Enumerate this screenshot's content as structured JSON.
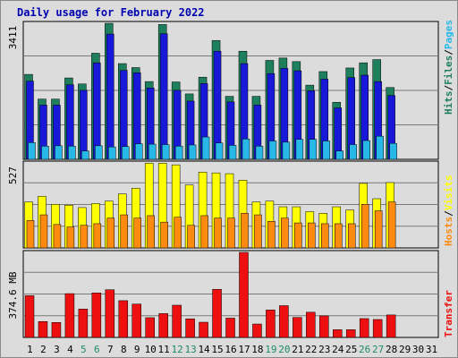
{
  "title": "Daily usage for February 2022",
  "colors": {
    "hits": "#1e7f5c",
    "files": "#1818d8",
    "pages": "#28b8e8",
    "visits": "#ffff00",
    "hosts": "#ff8a10",
    "transfer": "#ee1010",
    "weekend_label": "#1e8a6a",
    "weekday_label": "#000000"
  },
  "chart_data": [
    {
      "type": "bar",
      "name": "hits-files-pages",
      "ylim": [
        0,
        3411
      ],
      "y_max_label": "3411",
      "series_labels": [
        "Hits",
        "Files",
        "Pages"
      ],
      "x": [
        1,
        2,
        3,
        4,
        5,
        6,
        7,
        8,
        9,
        10,
        11,
        12,
        13,
        14,
        15,
        16,
        17,
        18,
        19,
        20,
        21,
        22,
        23,
        24,
        25,
        26,
        27,
        28
      ],
      "series": [
        {
          "name": "Hits",
          "values": [
            2130,
            1510,
            1510,
            2040,
            1890,
            2660,
            3410,
            2400,
            2300,
            1950,
            3380,
            1940,
            1640,
            2060,
            2980,
            1580,
            2710,
            1580,
            2480,
            2540,
            2450,
            1860,
            2200,
            1430,
            2290,
            2420,
            2500,
            1800
          ]
        },
        {
          "name": "Files",
          "values": [
            1960,
            1360,
            1360,
            1870,
            1730,
            2420,
            3140,
            2230,
            2170,
            1790,
            3150,
            1730,
            1460,
            1900,
            2710,
            1440,
            2400,
            1360,
            2150,
            2280,
            2220,
            1720,
            2010,
            1290,
            2050,
            2110,
            1950,
            1600
          ]
        },
        {
          "name": "Pages",
          "values": [
            420,
            330,
            340,
            330,
            210,
            340,
            310,
            320,
            390,
            380,
            370,
            330,
            360,
            560,
            410,
            350,
            510,
            330,
            460,
            430,
            500,
            500,
            460,
            210,
            370,
            470,
            580,
            400
          ]
        }
      ],
      "xlim": [
        1,
        31
      ]
    },
    {
      "type": "bar",
      "name": "visits-hosts",
      "ylim": [
        0,
        527
      ],
      "y_max_label": "527",
      "series_labels": [
        "Hosts",
        "Visits"
      ],
      "x": [
        1,
        2,
        3,
        4,
        5,
        6,
        7,
        8,
        9,
        10,
        11,
        12,
        13,
        14,
        15,
        16,
        17,
        18,
        19,
        20,
        21,
        22,
        23,
        24,
        25,
        26,
        27,
        28
      ],
      "series": [
        {
          "name": "Visits",
          "values": [
            285,
            320,
            270,
            265,
            250,
            275,
            290,
            335,
            370,
            525,
            525,
            515,
            390,
            470,
            465,
            460,
            420,
            285,
            290,
            255,
            255,
            225,
            215,
            255,
            235,
            400,
            305,
            405
          ]
        },
        {
          "name": "Hosts",
          "values": [
            170,
            205,
            145,
            130,
            140,
            150,
            185,
            205,
            185,
            200,
            160,
            190,
            140,
            200,
            185,
            185,
            215,
            205,
            165,
            185,
            155,
            155,
            150,
            150,
            150,
            270,
            230,
            285
          ]
        }
      ],
      "xlim": [
        1,
        31
      ]
    },
    {
      "type": "bar",
      "name": "transfer",
      "ylim": [
        0,
        374.6
      ],
      "y_max_label": "374.6 MB",
      "series_labels": [
        "Transfer"
      ],
      "x": [
        1,
        2,
        3,
        4,
        5,
        6,
        7,
        8,
        9,
        10,
        11,
        12,
        13,
        14,
        15,
        16,
        17,
        18,
        19,
        20,
        21,
        22,
        23,
        24,
        25,
        26,
        27,
        28
      ],
      "series": [
        {
          "name": "Transfer",
          "values": [
            184,
            70,
            66,
            193,
            125,
            196,
            210,
            162,
            147,
            87,
            105,
            142,
            82,
            67,
            212,
            85,
            374.6,
            59,
            121,
            140,
            88,
            111,
            95,
            34,
            34,
            83,
            79,
            99
          ]
        }
      ],
      "xlim": [
        1,
        31
      ]
    }
  ],
  "x_labels": [
    "1",
    "2",
    "3",
    "4",
    "5",
    "6",
    "7",
    "8",
    "9",
    "10",
    "11",
    "12",
    "13",
    "14",
    "15",
    "16",
    "17",
    "18",
    "19",
    "20",
    "21",
    "22",
    "23",
    "24",
    "25",
    "26",
    "27",
    "28",
    "29",
    "30",
    "31"
  ],
  "weekend_days": [
    5,
    6,
    12,
    13,
    19,
    20,
    26,
    27
  ]
}
